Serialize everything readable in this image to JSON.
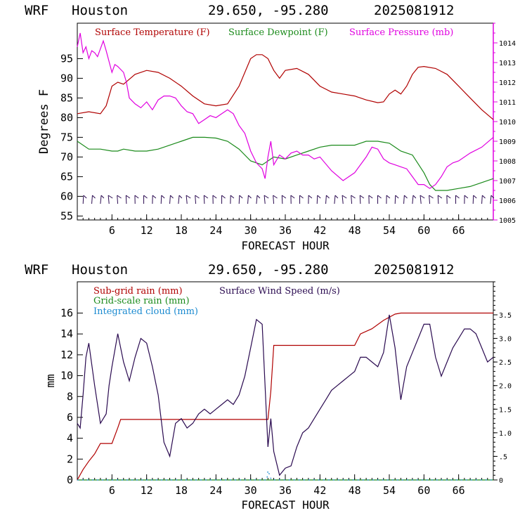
{
  "top": {
    "header": {
      "model": "WRF",
      "site": "Houston",
      "coords": "29.650, -95.280",
      "date": "2025081912"
    }
  },
  "bottom": {
    "header": {
      "model": "WRF",
      "site": "Houston",
      "coords": "29.650, -95.280",
      "date": "2025081912"
    }
  },
  "colors": {
    "temp": "#b00000",
    "dew": "#1a8a1a",
    "pres": "#e000e0",
    "subrain": "#b00000",
    "gridrain": "#1a8a1a",
    "cloud": "#1a8ad0",
    "wind": "#2a0a50"
  },
  "chart_data": [
    {
      "type": "line",
      "xlabel": "FORECAST HOUR",
      "ylabel": "Degrees F",
      "xlim": [
        0,
        72
      ],
      "ylim": [
        54,
        104
      ],
      "y2lim": [
        1005,
        1015
      ],
      "xticks": [
        "6",
        "12",
        "18",
        "24",
        "30",
        "36",
        "42",
        "48",
        "54",
        "60",
        "66"
      ],
      "yticks": [
        "55",
        "60",
        "65",
        "70",
        "75",
        "80",
        "85",
        "90",
        "95"
      ],
      "y2ticks": [
        "1005",
        "1006",
        "1007",
        "1008",
        "1009",
        "1010",
        "1011",
        "1012",
        "1013",
        "1014"
      ],
      "legend": [
        "Surface Temperature (F)",
        "Surface Dewpoint (F)",
        "Surface Pressure (mb)"
      ],
      "wind_barbs": "row of wind barbs along the bottom of the temperature panel",
      "series": [
        {
          "name": "Surface Temperature (F)",
          "axis": "left",
          "x": [
            0,
            2,
            4,
            5,
            6,
            7,
            8,
            10,
            12,
            14,
            16,
            18,
            20,
            22,
            24,
            26,
            28,
            30,
            31,
            32,
            33,
            34,
            35,
            36,
            38,
            40,
            42,
            44,
            46,
            48,
            50,
            52,
            53,
            54,
            55,
            56,
            57,
            58,
            59,
            60,
            62,
            64,
            66,
            68,
            70,
            72
          ],
          "y": [
            81,
            81.5,
            81,
            83,
            88,
            89,
            88.5,
            91,
            92,
            91.5,
            90,
            88,
            85.5,
            83.5,
            83,
            83.5,
            88,
            95,
            96,
            96,
            95,
            92,
            90,
            92,
            92.5,
            91,
            88,
            86.5,
            86,
            85.5,
            84.5,
            83.8,
            84,
            86,
            87,
            86,
            88,
            91,
            92.8,
            93,
            92.5,
            91,
            88,
            85,
            82,
            79.5
          ]
        },
        {
          "name": "Surface Dewpoint (F)",
          "axis": "left",
          "x": [
            0,
            2,
            4,
            6,
            7,
            8,
            10,
            12,
            14,
            16,
            18,
            20,
            22,
            24,
            26,
            28,
            30,
            32,
            34,
            36,
            38,
            40,
            42,
            44,
            46,
            48,
            49,
            50,
            52,
            54,
            55,
            56,
            58,
            60,
            61,
            62,
            64,
            66,
            68,
            70,
            72
          ],
          "y": [
            74,
            72,
            72,
            71.5,
            71.5,
            72,
            71.5,
            71.5,
            72,
            73,
            74,
            75,
            75,
            74.8,
            74,
            72,
            69,
            68,
            70,
            69.5,
            70.5,
            71.5,
            72.5,
            73,
            73,
            73,
            73.5,
            74,
            74,
            73.5,
            72.5,
            71.5,
            70.5,
            66,
            63,
            61.5,
            61.5,
            62,
            62.5,
            63.5,
            64.5
          ]
        },
        {
          "name": "Surface Pressure (mb)",
          "axis": "right",
          "x": [
            0,
            0.5,
            1,
            1.5,
            2,
            2.5,
            3,
            3.5,
            4,
            4.5,
            5,
            6,
            6.5,
            7,
            8,
            8.5,
            9,
            10,
            11,
            12,
            13,
            14,
            15,
            16,
            17,
            18,
            19,
            20,
            21,
            22,
            23,
            24,
            25,
            26,
            27,
            28,
            29,
            30,
            31,
            32,
            32.5,
            33,
            33.5,
            34,
            35,
            36,
            37,
            38,
            39,
            40,
            41,
            42,
            44,
            46,
            48,
            50,
            51,
            52,
            53,
            54,
            55,
            56,
            57,
            58,
            59,
            60,
            61,
            62,
            63,
            64,
            65,
            66,
            68,
            70,
            72
          ],
          "y": [
            1013.8,
            1014.5,
            1013.5,
            1013.8,
            1013.2,
            1013.6,
            1013.5,
            1013.3,
            1013.7,
            1014.1,
            1013.6,
            1012.5,
            1012.9,
            1012.8,
            1012.5,
            1012.0,
            1011.2,
            1010.9,
            1010.7,
            1011.0,
            1010.6,
            1011.1,
            1011.3,
            1011.3,
            1011.2,
            1010.8,
            1010.5,
            1010.4,
            1009.9,
            1010.1,
            1010.3,
            1010.2,
            1010.4,
            1010.6,
            1010.4,
            1009.8,
            1009.4,
            1008.5,
            1007.9,
            1007.6,
            1007.1,
            1008.2,
            1009.0,
            1007.8,
            1008.3,
            1008.1,
            1008.4,
            1008.5,
            1008.3,
            1008.3,
            1008.1,
            1008.2,
            1007.5,
            1007.0,
            1007.4,
            1008.2,
            1008.7,
            1008.6,
            1008.1,
            1007.9,
            1007.8,
            1007.7,
            1007.6,
            1007.2,
            1006.8,
            1006.8,
            1006.6,
            1006.8,
            1007.2,
            1007.7,
            1007.9,
            1008.0,
            1008.4,
            1008.7,
            1009.2
          ]
        }
      ]
    },
    {
      "type": "line",
      "xlabel": "FORECAST HOUR",
      "ylabel": "mm",
      "xlim": [
        0,
        72
      ],
      "ylim": [
        0,
        19
      ],
      "y2lim": [
        0,
        4.2
      ],
      "xticks": [
        "6",
        "12",
        "18",
        "24",
        "30",
        "36",
        "42",
        "48",
        "54",
        "60",
        "66"
      ],
      "yticks": [
        "0",
        "2",
        "4",
        "6",
        "8",
        "10",
        "12",
        "14",
        "16"
      ],
      "y2ticks": [
        "0",
        ".5",
        "1.0",
        "1.5",
        "2.0",
        "2.5",
        "3.0",
        "3.5"
      ],
      "legend": [
        "Sub-grid rain (mm)",
        "Grid-scale rain (mm)",
        "Integrated cloud (mm)",
        "Surface Wind Speed (m/s)"
      ],
      "series": [
        {
          "name": "Sub-grid rain (mm)",
          "axis": "left",
          "x": [
            0,
            1,
            2,
            3,
            4,
            5,
            6,
            7,
            7.5,
            8,
            10,
            20,
            26,
            30,
            31,
            32,
            33,
            33.5,
            34,
            34.5,
            35,
            36,
            40,
            44,
            48,
            49,
            51,
            53,
            55,
            56,
            60,
            66,
            72
          ],
          "y": [
            0,
            1.0,
            1.8,
            2.5,
            3.5,
            3.5,
            3.5,
            5.0,
            5.8,
            5.8,
            5.8,
            5.8,
            5.8,
            5.8,
            5.8,
            5.8,
            5.8,
            8.5,
            12.9,
            12.9,
            12.9,
            12.9,
            12.9,
            12.9,
            12.9,
            14.0,
            14.5,
            15.3,
            15.9,
            16.0,
            16.0,
            16.0,
            16.0
          ]
        },
        {
          "name": "Grid-scale rain (mm)",
          "axis": "left",
          "x": [
            0,
            72
          ],
          "y": [
            0,
            0
          ]
        },
        {
          "name": "Integrated cloud (mm)",
          "axis": "left",
          "x": [
            0,
            32.8,
            33,
            33.4,
            33.6,
            72
          ],
          "y": [
            0,
            0,
            0.9,
            0.3,
            0,
            0
          ]
        },
        {
          "name": "Surface Wind Speed (m/s)",
          "axis": "right",
          "x": [
            0,
            0.5,
            1,
            1.5,
            2,
            3,
            4,
            4.5,
            5,
            5.5,
            6,
            7,
            8,
            9,
            10,
            11,
            12,
            13,
            14,
            15,
            16,
            17,
            18,
            19,
            20,
            21,
            22,
            23,
            24,
            25,
            26,
            27,
            28,
            29,
            30,
            31,
            32,
            33,
            33.5,
            34,
            35,
            36,
            37,
            38,
            39,
            40,
            41,
            42,
            43,
            44,
            45,
            46,
            47,
            48,
            49,
            50,
            51,
            52,
            53,
            54,
            55,
            56,
            57,
            58,
            59,
            60,
            61,
            62,
            63,
            64,
            65,
            66,
            67,
            68,
            69,
            70,
            71,
            72
          ],
          "y": [
            1.2,
            1.1,
            1.8,
            2.6,
            2.9,
            2.0,
            1.2,
            1.3,
            1.4,
            2.0,
            2.4,
            3.1,
            2.5,
            2.1,
            2.6,
            3.0,
            2.9,
            2.4,
            1.8,
            0.8,
            0.5,
            1.2,
            1.3,
            1.1,
            1.2,
            1.4,
            1.5,
            1.4,
            1.5,
            1.6,
            1.7,
            1.6,
            1.8,
            2.2,
            2.8,
            3.4,
            3.3,
            0.7,
            1.3,
            0.6,
            0.1,
            0.25,
            0.3,
            0.7,
            1.0,
            1.1,
            1.3,
            1.5,
            1.7,
            1.9,
            2.0,
            2.1,
            2.2,
            2.3,
            2.6,
            2.6,
            2.5,
            2.4,
            2.7,
            3.5,
            2.8,
            1.7,
            2.4,
            2.7,
            3.0,
            3.3,
            3.3,
            2.6,
            2.2,
            2.5,
            2.8,
            3.0,
            3.2,
            3.2,
            3.1,
            2.8,
            2.5,
            2.6
          ]
        }
      ]
    }
  ]
}
